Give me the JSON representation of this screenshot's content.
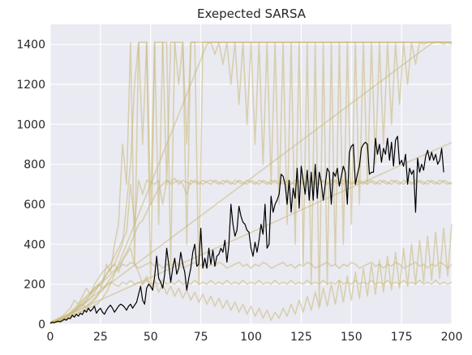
{
  "chart_data": {
    "type": "line",
    "title": "Exepected SARSA",
    "xlabel": "",
    "ylabel": "",
    "xlim": [
      0,
      200
    ],
    "ylim": [
      0,
      1500
    ],
    "xticks": [
      0,
      25,
      50,
      75,
      100,
      125,
      150,
      175,
      200
    ],
    "yticks": [
      0,
      200,
      400,
      600,
      800,
      1000,
      1200,
      1400
    ],
    "xtick_labels": [
      "0",
      "25",
      "50",
      "75",
      "100",
      "125",
      "150",
      "175",
      "200"
    ],
    "ytick_labels": [
      "0",
      "200",
      "400",
      "600",
      "800",
      "1000",
      "1200",
      "1400"
    ],
    "grid": true,
    "legend": "none",
    "colors": {
      "background": "#eaeaf2",
      "grid": "#ffffff",
      "runs": "#c8b878",
      "mean": "#000000",
      "text": "#262626"
    },
    "mean_series": {
      "x_start": 0,
      "x_step": 1,
      "values": [
        5,
        10,
        8,
        12,
        15,
        12,
        18,
        25,
        20,
        30,
        28,
        45,
        35,
        50,
        40,
        55,
        48,
        70,
        60,
        80,
        65,
        75,
        90,
        55,
        70,
        80,
        60,
        50,
        70,
        85,
        95,
        80,
        60,
        75,
        90,
        100,
        95,
        85,
        70,
        90,
        100,
        80,
        95,
        110,
        150,
        190,
        120,
        100,
        180,
        200,
        190,
        170,
        240,
        340,
        230,
        210,
        180,
        250,
        380,
        300,
        210,
        280,
        330,
        250,
        280,
        360,
        300,
        260,
        170,
        230,
        280,
        360,
        400,
        290,
        300,
        480,
        280,
        330,
        280,
        380,
        300,
        370,
        290,
        340,
        350,
        380,
        360,
        420,
        310,
        400,
        600,
        500,
        440,
        470,
        590,
        540,
        510,
        500,
        470,
        460,
        380,
        340,
        410,
        360,
        420,
        500,
        450,
        600,
        380,
        400,
        640,
        560,
        600,
        620,
        650,
        750,
        740,
        700,
        600,
        720,
        560,
        680,
        630,
        780,
        580,
        790,
        720,
        650,
        770,
        620,
        760,
        620,
        800,
        630,
        760,
        710,
        620,
        700,
        780,
        760,
        600,
        760,
        740,
        780,
        690,
        740,
        790,
        760,
        600,
        860,
        890,
        900,
        700,
        750,
        790,
        880,
        900,
        910,
        900,
        750,
        760,
        760,
        930,
        850,
        900,
        810,
        880,
        850,
        930,
        820,
        910,
        790,
        920,
        940,
        800,
        820,
        790,
        850,
        700,
        780,
        750,
        770,
        560,
        830,
        760,
        800,
        770,
        840,
        870,
        820,
        860,
        820,
        850,
        800,
        820,
        880,
        760
      ],
      "display_name": ""
    },
    "run_series": [
      {
        "display_name": "",
        "x_start": 0,
        "x_step": 2,
        "values": [
          5,
          15,
          20,
          25,
          30,
          40,
          60,
          80,
          100,
          120,
          150,
          180,
          200,
          220,
          250,
          280,
          300,
          350,
          400,
          600,
          800,
          1200,
          1410,
          900,
          1410,
          600,
          1410,
          1410,
          1410,
          700,
          1410,
          1410,
          1200,
          1410,
          900,
          1410,
          1410,
          1410,
          1410,
          1410,
          1410,
          1410,
          1410,
          1410,
          1410,
          1410,
          1410,
          1410,
          1410,
          1410,
          1410,
          1410,
          1410,
          1410,
          1410,
          1410,
          1410,
          1410,
          1410,
          1410,
          1410,
          1410,
          1410,
          1410,
          1410,
          1410,
          1410,
          1410,
          1410,
          1410,
          1410,
          1410,
          1410,
          1410,
          1410,
          1410,
          1410,
          1410,
          1410,
          1410,
          1410,
          1410,
          1410,
          1410,
          1410,
          1410,
          1410,
          1410,
          1410,
          1410,
          1410,
          1410,
          1410,
          1410,
          1410,
          1410,
          1410,
          1410,
          1400,
          1410,
          1400
        ]
      },
      {
        "display_name": "",
        "x_start": 0,
        "x_step": 2,
        "values": [
          8,
          12,
          18,
          30,
          40,
          50,
          70,
          90,
          100,
          80,
          100,
          120,
          150,
          200,
          300,
          260,
          400,
          500,
          900,
          700,
          1410,
          300,
          1410,
          1410,
          1410,
          200,
          1410,
          500,
          1410,
          1410,
          300,
          1410,
          1410,
          1410,
          400,
          1410,
          1410,
          200,
          1410,
          1410,
          1410,
          1410,
          1410,
          1410,
          1410,
          1410,
          1410,
          1410,
          1410,
          1410,
          1410,
          1410,
          1410,
          1410,
          1410,
          1410,
          1410,
          1410,
          1410,
          1410,
          1410,
          1410,
          1410,
          1410,
          1410,
          1410,
          1410,
          1410,
          1410,
          1410,
          1410,
          1410,
          1410,
          1410,
          1410,
          1410,
          1410,
          1410,
          1410,
          1410,
          1410,
          1410,
          1410,
          1410,
          1410,
          1410,
          1410,
          1410,
          1410,
          1410,
          1410,
          1410,
          1410,
          1410,
          1410,
          1410,
          1410,
          1410,
          1410,
          1410,
          1410
        ]
      },
      {
        "display_name": "",
        "x_start": 0,
        "x_step": 2,
        "values": [
          3,
          8,
          15,
          22,
          35,
          45,
          60,
          70,
          90,
          110,
          130,
          160,
          190,
          210,
          250,
          280,
          300,
          260,
          320,
          360,
          400,
          450,
          500,
          520,
          560,
          600,
          640,
          680,
          700,
          720,
          710,
          730,
          700,
          720,
          710,
          700,
          720,
          710,
          700,
          715,
          720,
          710,
          700,
          720,
          710,
          700,
          720,
          710,
          700,
          720,
          710,
          700,
          720,
          710,
          700,
          720,
          710,
          700,
          720,
          710,
          700,
          720,
          710,
          700,
          720,
          710,
          700,
          720,
          710,
          700,
          720,
          710,
          700,
          720,
          710,
          700,
          720,
          710,
          700,
          720,
          710,
          700,
          720,
          710,
          700,
          720,
          710,
          700,
          720,
          710,
          700,
          720,
          710,
          700,
          720,
          710,
          700,
          720,
          710,
          700,
          710
        ]
      },
      {
        "display_name": "",
        "x_start": 0,
        "x_step": 2,
        "values": [
          10,
          20,
          30,
          40,
          60,
          80,
          120,
          100,
          140,
          180,
          150,
          200,
          230,
          260,
          280,
          300,
          340,
          380,
          420,
          460,
          700,
          500,
          720,
          650,
          720,
          710,
          700,
          720,
          600,
          720,
          700,
          710,
          720,
          700,
          650,
          720,
          710,
          700,
          720,
          710,
          700,
          720,
          710,
          700,
          720,
          710,
          700,
          720,
          710,
          700,
          720,
          710,
          700,
          720,
          710,
          700,
          720,
          710,
          700,
          720,
          710,
          700,
          720,
          710,
          700,
          720,
          710,
          700,
          720,
          710,
          700,
          720,
          710,
          700,
          720,
          710,
          700,
          720,
          710,
          700,
          720,
          710,
          700,
          720,
          710,
          700,
          720,
          710,
          700,
          720,
          710,
          700,
          720,
          710,
          700,
          720,
          710,
          700,
          720,
          710,
          700
        ]
      },
      {
        "display_name": "",
        "x_start": 0,
        "x_step": 2,
        "values": [
          6,
          10,
          20,
          30,
          40,
          60,
          80,
          100,
          120,
          140,
          160,
          180,
          200,
          180,
          200,
          210,
          200,
          190,
          210,
          200,
          220,
          200,
          210,
          200,
          220,
          200,
          210,
          200,
          220,
          200,
          210,
          200,
          220,
          200,
          210,
          200,
          220,
          200,
          210,
          200,
          220,
          200,
          210,
          200,
          220,
          200,
          210,
          200,
          220,
          200,
          210,
          200,
          220,
          200,
          210,
          200,
          220,
          200,
          210,
          200,
          220,
          200,
          210,
          200,
          220,
          200,
          210,
          200,
          220,
          200,
          210,
          200,
          220,
          200,
          210,
          200,
          220,
          200,
          210,
          200,
          220,
          200,
          210,
          200,
          220,
          200,
          210,
          200,
          220,
          200,
          210,
          200,
          220,
          200,
          210,
          200,
          220,
          200,
          210,
          200,
          210
        ]
      },
      {
        "display_name": "",
        "x_start": 0,
        "x_step": 2,
        "values": [
          4,
          12,
          18,
          28,
          38,
          52,
          70,
          90,
          110,
          130,
          150,
          170,
          190,
          210,
          230,
          250,
          270,
          280,
          300,
          290,
          310,
          300,
          280,
          290,
          300,
          310,
          290,
          300,
          280,
          300,
          290,
          310,
          300,
          280,
          290,
          300,
          310,
          290,
          300,
          280,
          300,
          290,
          310,
          300,
          280,
          290,
          300,
          310,
          290,
          300,
          280,
          300,
          290,
          310,
          300,
          280,
          290,
          300,
          310,
          290,
          300,
          280,
          300,
          290,
          310,
          300,
          280,
          290,
          300,
          310,
          290,
          300,
          280,
          300,
          290,
          310,
          300,
          280,
          290,
          300,
          310,
          290,
          300,
          280,
          300,
          290,
          310,
          300,
          280,
          290,
          300,
          310,
          290,
          300,
          280,
          300,
          290,
          310,
          300,
          280,
          300
        ]
      },
      {
        "display_name": "",
        "x_start": 0,
        "x_step": 2,
        "values": [
          5,
          10,
          15,
          20,
          30,
          40,
          50,
          60,
          70,
          90,
          110,
          130,
          150,
          170,
          200,
          230,
          260,
          290,
          320,
          350,
          380,
          300,
          260,
          200,
          240,
          180,
          220,
          160,
          200,
          150,
          190,
          140,
          180,
          130,
          170,
          120,
          160,
          110,
          150,
          100,
          140,
          90,
          130,
          80,
          120,
          70,
          110,
          60,
          100,
          50,
          90,
          40,
          80,
          30,
          70,
          20,
          60,
          30,
          80,
          40,
          100,
          50,
          120,
          60,
          140,
          70,
          160,
          80,
          180,
          90,
          200,
          100,
          220,
          110,
          240,
          120,
          260,
          130,
          280,
          140,
          300,
          150,
          320,
          160,
          340,
          170,
          360,
          180,
          380,
          190,
          400,
          200,
          420,
          210,
          440,
          220,
          460,
          230,
          480,
          240,
          500
        ]
      },
      {
        "display_name": "",
        "x_start": 0,
        "x_step": 2,
        "values": [
          7,
          14,
          22,
          30,
          45,
          55,
          70,
          85,
          100,
          115,
          130,
          145,
          160,
          175,
          190,
          205,
          220,
          235,
          250,
          265,
          280,
          295,
          310,
          325,
          340,
          355,
          370,
          385,
          400,
          415,
          430,
          445,
          460,
          475,
          490,
          505,
          520,
          535,
          550,
          565,
          580,
          595,
          610,
          625,
          640,
          655,
          670,
          685,
          700,
          715,
          730,
          745,
          760,
          775,
          790,
          805,
          820,
          835,
          850,
          865,
          880,
          895,
          910,
          925,
          940,
          955,
          970,
          985,
          1000,
          1015,
          1030,
          1045,
          1060,
          1075,
          1090,
          1105,
          1120,
          1135,
          1150,
          1165,
          1180,
          1195,
          1210,
          1225,
          1240,
          1255,
          1270,
          1285,
          1300,
          1315,
          1330,
          1345,
          1360,
          1375,
          1390,
          1405,
          1410,
          1410,
          1410,
          1410,
          1410
        ]
      },
      {
        "display_name": "",
        "x_start": 0,
        "x_step": 2,
        "values": [
          3,
          6,
          10,
          15,
          25,
          35,
          45,
          55,
          65,
          75,
          85,
          95,
          105,
          130,
          160,
          200,
          250,
          300,
          350,
          400,
          450,
          500,
          550,
          600,
          650,
          700,
          750,
          800,
          850,
          900,
          950,
          1000,
          1050,
          1100,
          1150,
          1200,
          1250,
          1300,
          1350,
          1400,
          1410,
          1350,
          1410,
          1300,
          1410,
          1200,
          1410,
          1100,
          1410,
          1000,
          1410,
          900,
          1410,
          800,
          1410,
          700,
          1410,
          600,
          1410,
          500,
          1410,
          400,
          1410,
          300,
          1410,
          200,
          1410,
          100,
          1410,
          200,
          1410,
          300,
          1410,
          400,
          1410,
          500,
          1410,
          600,
          1410,
          700,
          1410,
          800,
          1410,
          900,
          1410,
          1000,
          1410,
          1100,
          1410,
          1200,
          1410,
          1300,
          1410,
          1400,
          1410,
          1410,
          1410,
          1410,
          1410,
          1410,
          1410
        ]
      },
      {
        "display_name": "",
        "x_start": 0,
        "x_step": 2,
        "values": [
          9,
          18,
          27,
          36,
          45,
          54,
          63,
          72,
          81,
          90,
          99,
          108,
          117,
          126,
          135,
          144,
          153,
          162,
          171,
          180,
          189,
          198,
          207,
          216,
          225,
          234,
          243,
          252,
          261,
          270,
          279,
          288,
          297,
          306,
          315,
          324,
          333,
          342,
          351,
          360,
          369,
          378,
          387,
          396,
          405,
          414,
          423,
          432,
          441,
          450,
          459,
          468,
          477,
          486,
          495,
          504,
          513,
          522,
          531,
          540,
          549,
          558,
          567,
          576,
          585,
          594,
          603,
          612,
          621,
          630,
          639,
          648,
          657,
          666,
          675,
          684,
          693,
          702,
          711,
          720,
          729,
          738,
          747,
          756,
          765,
          774,
          783,
          792,
          801,
          810,
          819,
          828,
          837,
          846,
          855,
          864,
          873,
          882,
          891,
          900,
          909
        ]
      }
    ]
  }
}
